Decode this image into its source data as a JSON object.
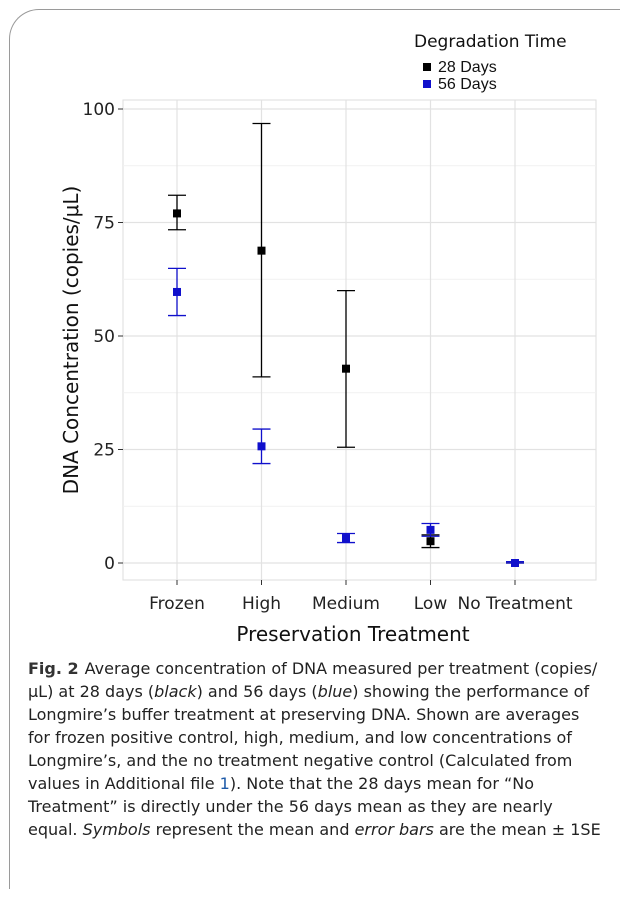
{
  "chart_data": {
    "type": "scatter",
    "categories": [
      "Frozen",
      "High",
      "Medium",
      "Low",
      "No Treatment"
    ],
    "xlabel": "Preservation Treatment",
    "ylabel": "DNA Concentration (copies/μL)",
    "ylim": [
      0,
      100
    ],
    "yticks": [
      0,
      25,
      50,
      75,
      100
    ],
    "grid": true,
    "legend": {
      "title": "Degradation Time",
      "placement": "top-right"
    },
    "series": [
      {
        "name": "28 Days",
        "color": "#000000",
        "values": [
          77,
          68.8,
          42.8,
          4.8,
          0
        ],
        "upper": [
          81,
          96.8,
          60,
          6.2,
          0.3
        ],
        "lower": [
          73.4,
          41,
          25.5,
          3.4,
          0
        ]
      },
      {
        "name": "56 Days",
        "color": "#1010cc",
        "values": [
          59.7,
          25.7,
          5.5,
          7.3,
          0
        ],
        "upper": [
          64.9,
          29.5,
          6.5,
          8.7,
          0.3
        ],
        "lower": [
          54.5,
          21.9,
          4.5,
          5.9,
          0
        ]
      }
    ]
  },
  "caption": {
    "label": "Fig. 2",
    "p1": "Average concentration of DNA measured per treatment (copies/μL) at 28 days (",
    "black_word": "black",
    "p2": ") and 56 days (",
    "blue_word": "blue",
    "p3": ") showing the performance of Longmire’s buffer treatment at preserving DNA. Shown are averages for frozen positive control, high, medium, and low concentrations of Longmire’s, and the no treatment negative control (Calculated from values in Additional file ",
    "file_ref": "1",
    "p4": "). Note that the 28 days mean for “No Treatment” is directly under the 56 days mean as they are nearly equal. ",
    "symbols_word": "Symbols",
    "p5": " represent the mean and ",
    "errorbars_word": "error bars",
    "p6": " are the mean ± 1SE"
  }
}
